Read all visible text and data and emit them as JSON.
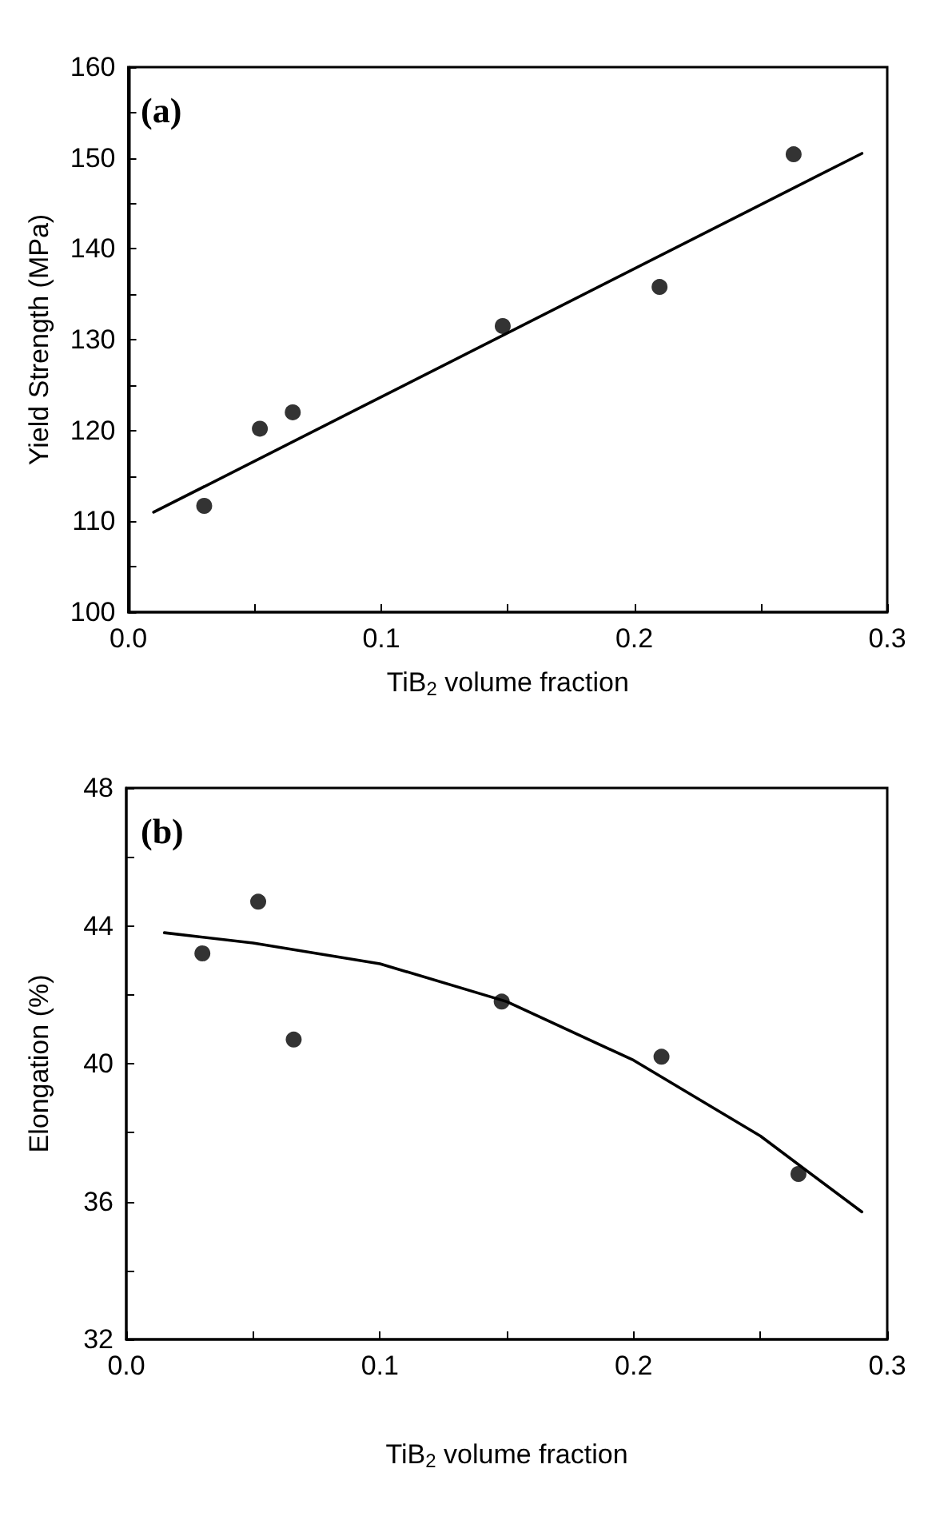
{
  "chart_data": [
    {
      "type": "scatter",
      "xlabel": "TiB$_{2}$ volume fraction",
      "ylabel": "Yield Strength (MPa)",
      "annotations": [
        "(a)"
      ],
      "marker": "circle",
      "xlim": [
        0,
        0.3
      ],
      "ylim": [
        100,
        160
      ],
      "xticks": [
        {
          "value": 0,
          "label": "0.0"
        },
        {
          "value": 0.05,
          "label": null
        },
        0.1,
        {
          "value": 0.15,
          "label": null
        },
        0.2,
        {
          "value": 0.25,
          "label": null
        },
        0.3
      ],
      "yticks": [
        100,
        {
          "value": 105,
          "label": null
        },
        110,
        {
          "value": 115,
          "label": null
        },
        120,
        {
          "value": 125,
          "label": null
        },
        130,
        {
          "value": 135,
          "label": null
        },
        140,
        {
          "value": 145,
          "label": null
        },
        150,
        {
          "value": 155,
          "label": null
        },
        160
      ],
      "series": [
        {
          "color": "#000000",
          "x": [
            0.03,
            0.052,
            0.065,
            0.148,
            0.21,
            0.263
          ],
          "values": [
            111.7,
            120.2,
            122,
            131.5,
            135.8,
            150.4
          ]
        },
        {
          "type": "line",
          "color": "#000000",
          "marker": "none",
          "x": [
            0.01,
            0.29
          ],
          "values": [
            111,
            150.5
          ]
        }
      ]
    },
    {
      "type": "scatter",
      "xlabel": "TiB$_{2}$ volume fraction",
      "ylabel": "Elongation (%)",
      "annotations": [
        "(b)"
      ],
      "marker": "circle",
      "xlim": [
        0,
        0.3
      ],
      "ylim": [
        32,
        48
      ],
      "xticks": [
        {
          "value": 0,
          "label": "0.0"
        },
        {
          "value": 0.05,
          "label": null
        },
        0.1,
        {
          "value": 0.15,
          "label": null
        },
        0.2,
        {
          "value": 0.25,
          "label": null
        },
        0.3
      ],
      "yticks": [
        32,
        {
          "value": 34,
          "label": null
        },
        36,
        {
          "value": 38,
          "label": null
        },
        40,
        {
          "value": 42,
          "label": null
        },
        44,
        {
          "value": 46,
          "label": null
        },
        48
      ],
      "series": [
        {
          "color": "#000000",
          "x": [
            0.03,
            0.052,
            0.066,
            0.148,
            0.211,
            0.265
          ],
          "values": [
            43.2,
            44.7,
            40.7,
            41.8,
            40.2,
            36.8
          ]
        },
        {
          "type": "line",
          "color": "#000000",
          "marker": "none",
          "x": [
            0.015,
            0.05,
            0.1,
            0.15,
            0.2,
            0.25,
            0.29
          ],
          "values": [
            43.8,
            43.5,
            42.9,
            41.8,
            40.1,
            37.9,
            35.7
          ]
        }
      ]
    }
  ]
}
